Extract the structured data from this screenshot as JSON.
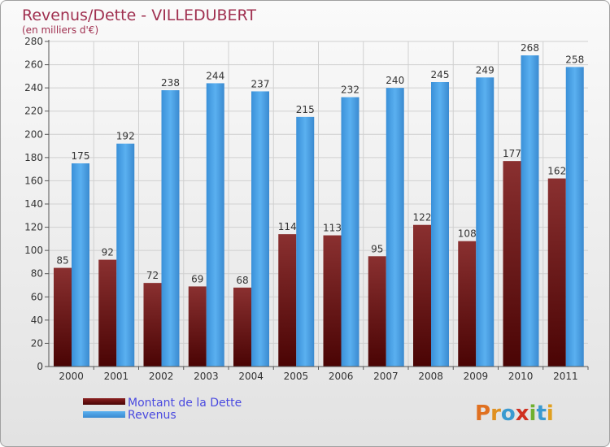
{
  "chart_data": {
    "type": "bar",
    "title": "Revenus/Dette - VILLEDUBERT",
    "subtitle": "(en milliers d'€)",
    "categories": [
      "2000",
      "2001",
      "2002",
      "2003",
      "2004",
      "2005",
      "2006",
      "2007",
      "2008",
      "2009",
      "2010",
      "2011"
    ],
    "series": [
      {
        "name": "Montant de la Dette",
        "color": "#7a1e1e",
        "values": [
          85,
          92,
          72,
          69,
          68,
          114,
          113,
          95,
          122,
          108,
          177,
          162
        ]
      },
      {
        "name": "Revenus",
        "color": "#3f9be0",
        "values": [
          175,
          192,
          238,
          244,
          237,
          215,
          232,
          240,
          245,
          249,
          268,
          258
        ]
      }
    ],
    "ylim": [
      0,
      280
    ],
    "ytick_step": 20,
    "grid": true,
    "legend": "bottom-left"
  },
  "logo": {
    "letters": [
      "P",
      "r",
      "o",
      "x",
      "i",
      "t",
      "i"
    ],
    "colors": [
      "#e07020",
      "#e09020",
      "#3a9ad0",
      "#d03020",
      "#70b030",
      "#3a9ad0",
      "#e0a020"
    ]
  }
}
